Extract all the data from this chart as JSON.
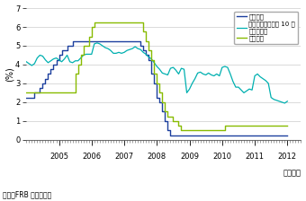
{
  "ylabel": "(%)",
  "xlabel": "（年月）",
  "source": "資料：FRB から作成。",
  "ylim": [
    0,
    7
  ],
  "yticks": [
    0,
    1,
    2,
    3,
    4,
    5,
    6,
    7
  ],
  "xlim": [
    2004.0,
    2012.25
  ],
  "xtick_years": [
    2005,
    2006,
    2007,
    2008,
    2009,
    2010,
    2011,
    2012
  ],
  "legend_labels": [
    "政策金利",
    "長期金利（米国債 10 年\n物利回り）",
    "公定歩合"
  ],
  "line_colors": [
    "#1c3f9e",
    "#00b0b0",
    "#88bb00"
  ],
  "policy_rate_dates": [
    2004.0,
    2004.083,
    2004.25,
    2004.417,
    2004.5,
    2004.583,
    2004.667,
    2004.75,
    2004.833,
    2004.917,
    2005.0,
    2005.083,
    2005.25,
    2005.417,
    2005.5,
    2005.583,
    2005.75,
    2005.917,
    2006.0,
    2006.083,
    2006.25,
    2006.417,
    2006.5,
    2006.583,
    2006.667,
    2006.75,
    2006.917,
    2007.0,
    2007.083,
    2007.25,
    2007.417,
    2007.5,
    2007.583,
    2007.667,
    2007.75,
    2007.833,
    2007.917,
    2008.0,
    2008.083,
    2008.167,
    2008.25,
    2008.333,
    2008.417,
    2008.5,
    2008.583,
    2008.667,
    2008.75,
    2008.833,
    2008.917,
    2009.0,
    2009.25,
    2009.5,
    2009.75,
    2010.0,
    2010.25,
    2010.5,
    2010.75,
    2011.0,
    2011.25,
    2011.5,
    2011.75,
    2012.0
  ],
  "policy_rate_values": [
    2.25,
    2.25,
    2.5,
    2.75,
    3.0,
    3.25,
    3.5,
    3.75,
    4.0,
    4.25,
    4.5,
    4.75,
    5.0,
    5.25,
    5.25,
    5.25,
    5.25,
    5.25,
    5.25,
    5.25,
    5.25,
    5.25,
    5.25,
    5.25,
    5.25,
    5.25,
    5.25,
    5.25,
    5.25,
    5.25,
    5.25,
    5.0,
    4.75,
    4.5,
    4.25,
    3.5,
    3.0,
    2.25,
    2.0,
    1.5,
    1.0,
    0.5,
    0.25,
    0.25,
    0.25,
    0.25,
    0.25,
    0.25,
    0.25,
    0.25,
    0.25,
    0.25,
    0.25,
    0.25,
    0.25,
    0.25,
    0.25,
    0.25,
    0.25,
    0.25,
    0.25,
    0.25
  ],
  "long_rate_dates": [
    2004.0,
    2004.083,
    2004.167,
    2004.25,
    2004.333,
    2004.417,
    2004.5,
    2004.583,
    2004.667,
    2004.75,
    2004.833,
    2004.917,
    2005.0,
    2005.083,
    2005.167,
    2005.25,
    2005.333,
    2005.417,
    2005.5,
    2005.583,
    2005.667,
    2005.75,
    2005.833,
    2005.917,
    2006.0,
    2006.083,
    2006.167,
    2006.25,
    2006.333,
    2006.417,
    2006.5,
    2006.583,
    2006.667,
    2006.75,
    2006.833,
    2006.917,
    2007.0,
    2007.083,
    2007.167,
    2007.25,
    2007.333,
    2007.417,
    2007.5,
    2007.583,
    2007.667,
    2007.75,
    2007.833,
    2007.917,
    2008.0,
    2008.083,
    2008.167,
    2008.25,
    2008.333,
    2008.417,
    2008.5,
    2008.583,
    2008.667,
    2008.75,
    2008.833,
    2008.917,
    2009.0,
    2009.083,
    2009.167,
    2009.25,
    2009.333,
    2009.417,
    2009.5,
    2009.583,
    2009.667,
    2009.75,
    2009.833,
    2009.917,
    2010.0,
    2010.083,
    2010.167,
    2010.25,
    2010.333,
    2010.417,
    2010.5,
    2010.583,
    2010.667,
    2010.75,
    2010.833,
    2010.917,
    2011.0,
    2011.083,
    2011.167,
    2011.25,
    2011.333,
    2011.417,
    2011.5,
    2011.583,
    2011.667,
    2011.75,
    2011.833,
    2011.917,
    2012.0
  ],
  "long_rate_values": [
    4.15,
    4.05,
    3.95,
    4.05,
    4.35,
    4.5,
    4.45,
    4.25,
    4.1,
    4.2,
    4.3,
    4.35,
    4.25,
    4.15,
    4.3,
    4.5,
    4.15,
    4.1,
    4.2,
    4.2,
    4.35,
    4.5,
    4.55,
    4.55,
    4.55,
    5.1,
    5.15,
    5.1,
    5.0,
    4.9,
    4.85,
    4.75,
    4.6,
    4.6,
    4.65,
    4.6,
    4.65,
    4.75,
    4.8,
    4.85,
    4.95,
    4.85,
    4.8,
    4.65,
    4.55,
    4.4,
    4.3,
    4.1,
    3.9,
    3.75,
    3.55,
    3.5,
    3.45,
    3.8,
    3.85,
    3.7,
    3.5,
    3.8,
    3.75,
    2.5,
    2.7,
    3.0,
    3.25,
    3.55,
    3.6,
    3.5,
    3.45,
    3.55,
    3.45,
    3.4,
    3.5,
    3.4,
    3.85,
    3.9,
    3.85,
    3.5,
    3.1,
    2.8,
    2.8,
    2.65,
    2.5,
    2.6,
    2.7,
    2.65,
    3.4,
    3.5,
    3.35,
    3.25,
    3.15,
    3.0,
    2.25,
    2.15,
    2.1,
    2.05,
    2.0,
    1.95,
    2.05
  ],
  "discount_rate_dates": [
    2004.0,
    2004.083,
    2004.25,
    2004.5,
    2004.75,
    2005.0,
    2005.25,
    2005.5,
    2005.583,
    2005.667,
    2005.75,
    2005.917,
    2006.0,
    2006.083,
    2006.25,
    2006.5,
    2006.75,
    2007.0,
    2007.25,
    2007.5,
    2007.583,
    2007.667,
    2007.75,
    2007.833,
    2007.917,
    2008.0,
    2008.083,
    2008.167,
    2008.25,
    2008.333,
    2008.5,
    2008.667,
    2008.75,
    2008.833,
    2008.917,
    2009.0,
    2009.25,
    2009.5,
    2009.75,
    2010.0,
    2010.083,
    2010.25,
    2010.5,
    2010.75,
    2011.0,
    2011.25,
    2011.5,
    2011.75,
    2012.0
  ],
  "discount_rate_values": [
    2.5,
    2.5,
    2.5,
    2.5,
    2.5,
    2.5,
    2.5,
    3.5,
    4.0,
    4.5,
    5.0,
    5.5,
    6.0,
    6.25,
    6.25,
    6.25,
    6.25,
    6.25,
    6.25,
    6.25,
    5.75,
    5.25,
    4.75,
    4.25,
    3.5,
    3.0,
    2.5,
    2.0,
    1.5,
    1.25,
    1.0,
    0.75,
    0.5,
    0.5,
    0.5,
    0.5,
    0.5,
    0.5,
    0.5,
    0.5,
    0.75,
    0.75,
    0.75,
    0.75,
    0.75,
    0.75,
    0.75,
    0.75,
    0.75
  ]
}
